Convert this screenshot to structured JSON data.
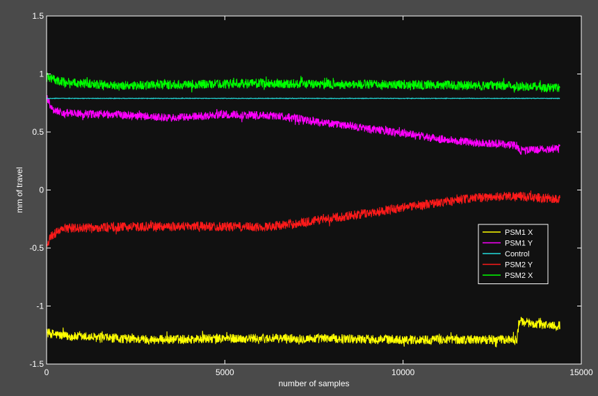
{
  "chart_data": {
    "type": "line",
    "title": "",
    "xlabel": "number of samples",
    "ylabel": "mm of travel",
    "xlim": [
      0,
      15000
    ],
    "ylim": [
      -1.5,
      1.5
    ],
    "x_ticks": [
      0,
      5000,
      10000,
      15000
    ],
    "x_tick_labels": [
      "0",
      "5000",
      "10000",
      "15000"
    ],
    "y_ticks": [
      1.5,
      1,
      0.5,
      0,
      -0.5,
      -1,
      -1.5
    ],
    "y_tick_labels": [
      "1.5",
      "1",
      "0.5",
      "0",
      "-0.5",
      "-1",
      "-1.5"
    ],
    "grid": false,
    "legend_position": "right",
    "background_color": "#111111",
    "figure_color": "#4a4a4a",
    "axis_color": "#ffffff",
    "series": [
      {
        "name": "PSM1 X",
        "color": "#ffff00",
        "noise": 0.04,
        "points": [
          [
            0,
            -1.23
          ],
          [
            500,
            -1.26
          ],
          [
            2000,
            -1.28
          ],
          [
            3000,
            -1.29
          ],
          [
            5000,
            -1.28
          ],
          [
            8000,
            -1.28
          ],
          [
            10000,
            -1.29
          ],
          [
            12000,
            -1.29
          ],
          [
            13200,
            -1.29
          ],
          [
            13250,
            -1.13
          ],
          [
            13800,
            -1.16
          ],
          [
            14400,
            -1.17
          ]
        ]
      },
      {
        "name": "PSM1 Y",
        "color": "#ff00ff",
        "noise": 0.035,
        "points": [
          [
            0,
            0.8
          ],
          [
            150,
            0.7
          ],
          [
            500,
            0.66
          ],
          [
            2000,
            0.65
          ],
          [
            3500,
            0.62
          ],
          [
            5000,
            0.65
          ],
          [
            6500,
            0.64
          ],
          [
            8000,
            0.57
          ],
          [
            10000,
            0.49
          ],
          [
            11000,
            0.44
          ],
          [
            12000,
            0.41
          ],
          [
            13000,
            0.39
          ],
          [
            13200,
            0.38
          ],
          [
            13300,
            0.34
          ],
          [
            14400,
            0.36
          ]
        ]
      },
      {
        "name": "Control",
        "color": "#22dddd",
        "noise": 0.002,
        "points": [
          [
            0,
            0.79
          ],
          [
            14400,
            0.79
          ]
        ]
      },
      {
        "name": "PSM2 Y",
        "color": "#ff1a1a",
        "noise": 0.04,
        "points": [
          [
            0,
            -0.47
          ],
          [
            150,
            -0.39
          ],
          [
            500,
            -0.33
          ],
          [
            2000,
            -0.32
          ],
          [
            4000,
            -0.31
          ],
          [
            6000,
            -0.32
          ],
          [
            7000,
            -0.29
          ],
          [
            8000,
            -0.24
          ],
          [
            9000,
            -0.2
          ],
          [
            10000,
            -0.15
          ],
          [
            11000,
            -0.11
          ],
          [
            12000,
            -0.07
          ],
          [
            13000,
            -0.05
          ],
          [
            14400,
            -0.08
          ]
        ]
      },
      {
        "name": "PSM2 X",
        "color": "#00ff00",
        "noise": 0.04,
        "points": [
          [
            0,
            0.97
          ],
          [
            500,
            0.93
          ],
          [
            2000,
            0.9
          ],
          [
            4000,
            0.91
          ],
          [
            6000,
            0.92
          ],
          [
            8000,
            0.91
          ],
          [
            10000,
            0.91
          ],
          [
            12000,
            0.9
          ],
          [
            13000,
            0.9
          ],
          [
            14400,
            0.88
          ]
        ]
      }
    ]
  }
}
